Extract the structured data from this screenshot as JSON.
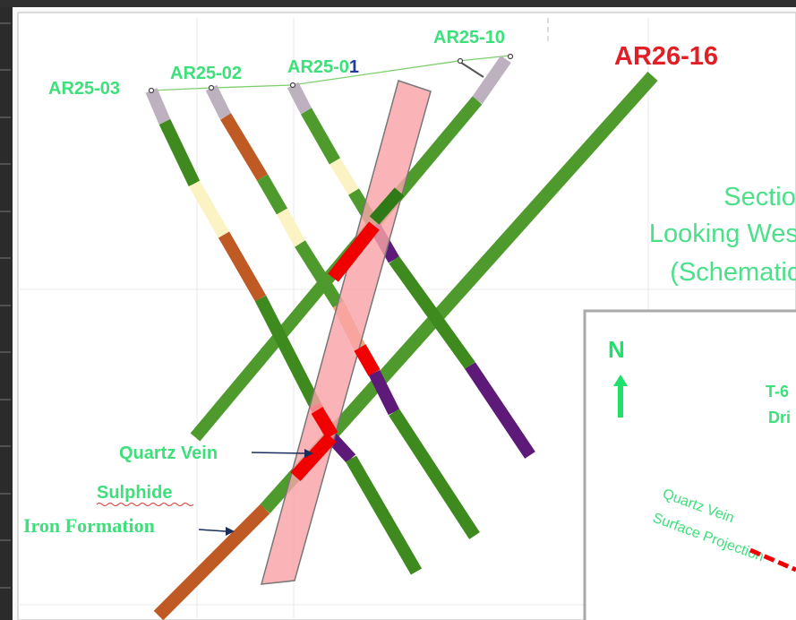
{
  "drillholes": [
    {
      "id": "ar25-03",
      "label": "AR25-03"
    },
    {
      "id": "ar25-02",
      "label": "AR25-02"
    },
    {
      "id": "ar25-01",
      "label": "AR25-0",
      "label_suffix": "1"
    },
    {
      "id": "ar25-10",
      "label": "AR25-10"
    },
    {
      "id": "ar26-16",
      "label": "AR26-16"
    }
  ],
  "section_title": {
    "line1": "Section",
    "line2": "Looking West",
    "line3": "(Schematic)"
  },
  "legend": {
    "quartz_vein": "Quartz Vein",
    "sulphide": "Sulphide",
    "iron_formation": "Iron Formation"
  },
  "inset": {
    "north": "N",
    "label_line1": "T-6",
    "label_line2": "Dri",
    "projection_line1": "Quartz Vein",
    "projection_line2": "Surface Projection"
  },
  "colors": {
    "green": "#4f9a2c",
    "dark_green": "#3f8a1e",
    "iron_formation": "#bf5a24",
    "sulphide": "#fbf3c4",
    "quartz_red": "#f00000",
    "purple": "#5e1a78",
    "casing": "#bdb0bf",
    "vein_fill": "#f9a3a7",
    "label_green": "#3de07a",
    "label_red": "#e01f26",
    "title_green": "#4be08a"
  }
}
